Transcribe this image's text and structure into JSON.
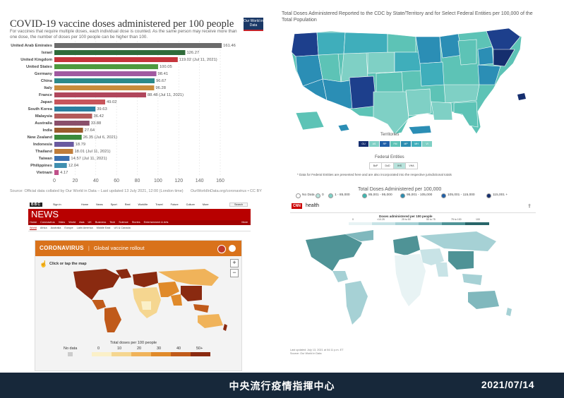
{
  "owid": {
    "title": "COVID-19 vaccine doses administered per 100 people",
    "subtitle": "For vaccines that require multiple doses, each individual dose is counted. As the same person may receive more than one dose, the number of doses per 100 people can be higher than 100.",
    "logo": "Our World in Data",
    "source": "Source: Official data collated by Our World in Data – Last updated 13 July 2021, 12:00 (London time)",
    "source_right": "OurWorldInData.org/coronavirus • CC BY"
  },
  "chart_data": [
    {
      "type": "bar",
      "title": "COVID-19 vaccine doses administered per 100 people",
      "orientation": "horizontal",
      "categories": [
        "United Arab Emirates",
        "Israel",
        "United Kingdom",
        "United States",
        "Germany",
        "China",
        "Italy",
        "France",
        "Japan",
        "South Korea",
        "Malaysia",
        "Australia",
        "India",
        "New Zealand",
        "Indonesia",
        "Thailand",
        "Taiwan",
        "Philippines",
        "Vietnam"
      ],
      "values": [
        161.46,
        126.27,
        119.02,
        100.05,
        98.41,
        96.67,
        96.28,
        88.48,
        49.02,
        39.63,
        36.42,
        33.88,
        27.64,
        26.35,
        18.79,
        18.01,
        14.57,
        12.04,
        4.17
      ],
      "labels": [
        "161.46",
        "126.27",
        "119.02 (Jul 11, 2021)",
        "100.05",
        "98.41",
        "96.67",
        "96.28",
        "88.48 (Jul 11, 2021)",
        "49.02",
        "39.63",
        "36.42",
        "33.88",
        "27.64",
        "26.35 (Jul 6, 2021)",
        "18.79",
        "18.01 (Jul 11, 2021)",
        "14.57 (Jul 11, 2021)",
        "12.04",
        "4.17"
      ],
      "colors": [
        "#6b6b6b",
        "#2f6b3a",
        "#c5343b",
        "#4e9a3f",
        "#a05aa0",
        "#2c8a8a",
        "#c98c3c",
        "#b0465c",
        "#c8555b",
        "#2a7fa0",
        "#b35a5a",
        "#8a4f6b",
        "#9a5b2d",
        "#3b8a3b",
        "#6a5aa0",
        "#c07d3a",
        "#3a6fb0",
        "#3f8fb0",
        "#c0508a"
      ],
      "xlim": [
        0,
        160
      ],
      "xticks": [
        0,
        20,
        40,
        60,
        80,
        100,
        120,
        140,
        160
      ]
    },
    {
      "type": "heatmap",
      "title": "Total Doses Administered Reported to the CDC by State/Territory and for Select Federal Entities per 100,000 of the Total Population",
      "legend_title": "Territories",
      "legend_items": [
        "GU",
        "AS",
        "RP",
        "FM",
        "MP",
        "MH",
        "VI"
      ],
      "federal_title": "Federal Entities",
      "federal_items": [
        "BoP",
        "DoD",
        "IHS",
        "VHA"
      ],
      "note": "* Data for Federal Entities are presented here and are also incorporated into the respective jurisdictional totals",
      "scale_title": "Total Doses Administered per 100,000",
      "scale_items": [
        "No Data",
        "0",
        "1 - 85,000",
        "85,001 - 95,000",
        "95,001 - 105,000",
        "105,001 - 115,000",
        "115,001 +"
      ],
      "scale_colors": [
        "#ffffff",
        "#b8e3dc",
        "#7fd0c5",
        "#3fb7b0",
        "#2a8cb0",
        "#1f5fa8",
        "#152e6e"
      ]
    },
    {
      "type": "heatmap",
      "title": "Global vaccine rollout",
      "legend_title": "Total doses per 100 people",
      "scale_items": [
        "No data",
        "0",
        "10",
        "20",
        "30",
        "40",
        "50+"
      ],
      "scale_colors": [
        "#cccccc",
        "#fbf0c8",
        "#f5d690",
        "#f0b35a",
        "#e08a2a",
        "#c05a1a",
        "#8a2a10"
      ]
    },
    {
      "type": "heatmap",
      "title": "Doses administered per 100 people",
      "scale_items": [
        "0",
        "<10.25",
        "25 to 50",
        "50 to 75",
        "75 to 100",
        "100"
      ],
      "scale_colors": [
        "#e8f3f4",
        "#c8e3e6",
        "#a6d1d5",
        "#80b8bd",
        "#4f9396",
        "#28666a"
      ]
    }
  ],
  "bbc": {
    "brand": "BBC",
    "signin": "Sign in",
    "top_nav": [
      "Home",
      "News",
      "Sport",
      "Reel",
      "Worklife",
      "Travel",
      "Future",
      "Culture",
      "More"
    ],
    "search": "Search",
    "news_label": "NEWS",
    "nav": [
      "Home",
      "Coronavirus",
      "Video",
      "World",
      "Asia",
      "UK",
      "Business",
      "Tech",
      "Science",
      "Stories",
      "Entertainment & Arts"
    ],
    "nav2": [
      "World",
      "Africa",
      "Australia",
      "Europe",
      "Latin America",
      "Middle East",
      "US & Canada"
    ],
    "more": "More",
    "panel_brand": "CORONAVIRUS",
    "panel_title": "Global vaccine rollout",
    "click_hint": "Click or tap the map",
    "legend_title": "Total doses per 100 people",
    "legend_items": [
      "No data",
      "0",
      "10",
      "20",
      "30",
      "40",
      "50+"
    ]
  },
  "cdc": {
    "title": "Total Doses Administered Reported to the CDC by State/Territory and for Select Federal Entities per 100,000 of the Total Population",
    "territories_title": "Territories",
    "territories": [
      "GU",
      "AS",
      "RP",
      "FM",
      "MP",
      "MH",
      "VI"
    ],
    "federal_title": "Federal Entities",
    "federal": [
      "BoP",
      "DoD",
      "IHS",
      "VHA"
    ],
    "note": "* Data for Federal Entities are presented here and are also incorporated into the respective jurisdictional totals",
    "scale_title": "Total Doses Administered per 100,000",
    "scale": [
      "No Data",
      "0",
      "1 - 85,000",
      "85,001 - 95,000",
      "95,001 - 105,000",
      "105,001 - 115,000",
      "115,001 +"
    ]
  },
  "cnn": {
    "brand": "CNN",
    "section": "health",
    "legend_title": "Doses administered per 100 people",
    "legend_ticks": [
      "0",
      "<10.25",
      "25 to 50",
      "50 to 75",
      "75 to 100",
      "100"
    ],
    "footnote1": "Last updated: July 13, 2021 at 04:11 p.m. ET",
    "footnote2": "Source: Our World in Data"
  },
  "footer": {
    "center": "中央流行疫情指揮中心",
    "date": "2021/07/14"
  }
}
